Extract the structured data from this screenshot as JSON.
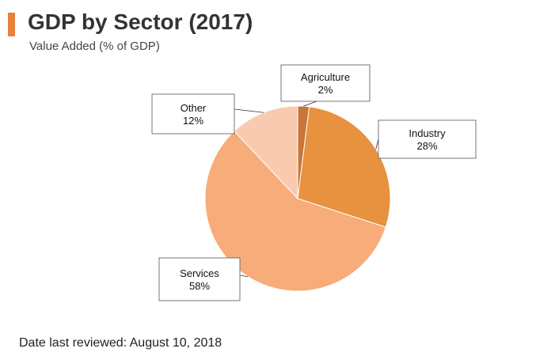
{
  "header": {
    "title": "GDP by Sector (2017)",
    "subtitle": "Value Added (% of GDP)",
    "accent_color": "#E8823A"
  },
  "footer": {
    "text": "Date last reviewed: August 10, 2018"
  },
  "chart_data": {
    "type": "pie",
    "title": "GDP by Sector (2017)",
    "subtitle": "Value Added (% of GDP)",
    "unit": "%",
    "slices": [
      {
        "name": "Agriculture",
        "value": 2,
        "label": "2%",
        "color": "#C8763A"
      },
      {
        "name": "Industry",
        "value": 28,
        "label": "28%",
        "color": "#E8913F"
      },
      {
        "name": "Services",
        "value": 58,
        "label": "58%",
        "color": "#F7AC79"
      },
      {
        "name": "Other",
        "value": 12,
        "label": "12%",
        "color": "#F8CBB0"
      }
    ]
  }
}
